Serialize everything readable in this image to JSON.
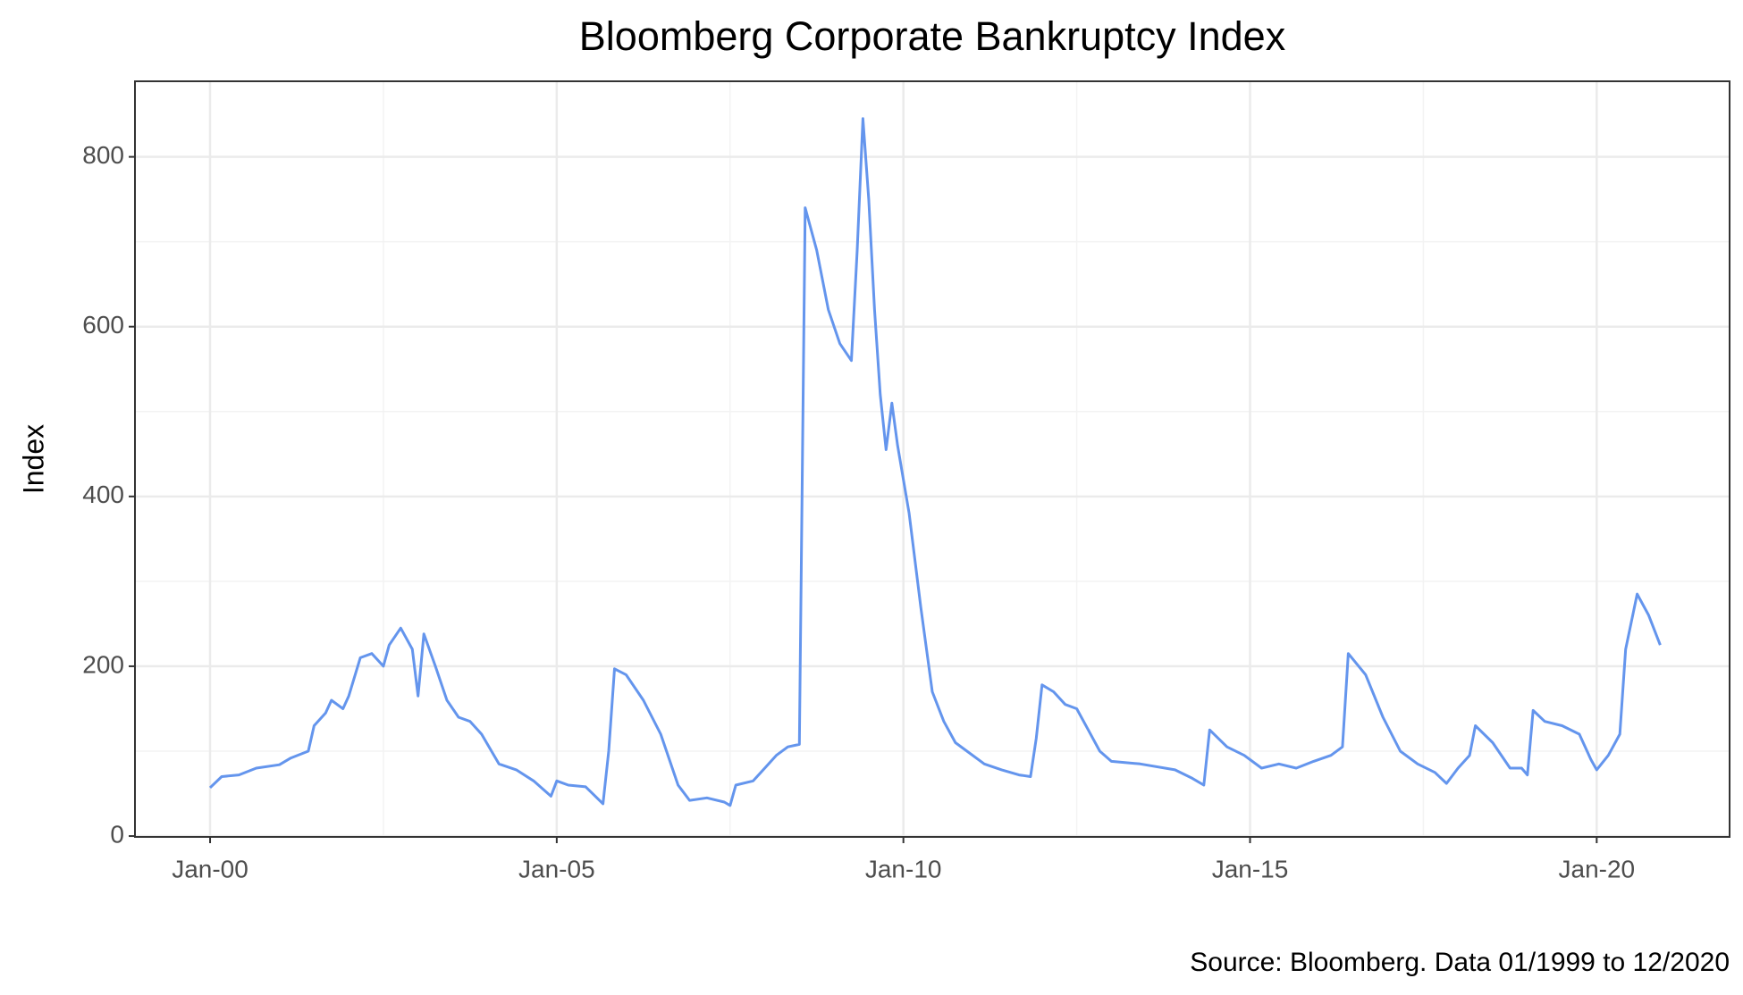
{
  "chart_data": {
    "type": "line",
    "title": "Bloomberg Corporate Bankruptcy Index",
    "y_label": "Index",
    "source": "Source: Bloomberg. Data 01/1999 to 12/2020",
    "color": "#6495ed",
    "grid": true,
    "xlim": [
      "1998-12",
      "2021-12"
    ],
    "xticks": [
      {
        "value": "2000-01",
        "label": "Jan-00"
      },
      {
        "value": "2005-01",
        "label": "Jan-05"
      },
      {
        "value": "2010-01",
        "label": "Jan-10"
      },
      {
        "value": "2015-01",
        "label": "Jan-15"
      },
      {
        "value": "2020-01",
        "label": "Jan-20"
      }
    ],
    "xminor": [
      "2002-07",
      "2007-07",
      "2012-07",
      "2017-07"
    ],
    "ylim": [
      -1,
      889
    ],
    "yticks": [
      0,
      200,
      400,
      600,
      800
    ],
    "yminor": [
      100,
      300,
      500,
      700
    ],
    "x": [
      "2000-01",
      "2000-03",
      "2000-06",
      "2000-09",
      "2001-01",
      "2001-03",
      "2001-06",
      "2001-07",
      "2001-09",
      "2001-10",
      "2001-12",
      "2002-01",
      "2002-03",
      "2002-05",
      "2002-07",
      "2002-08",
      "2002-10",
      "2002-12",
      "2003-01",
      "2003-02",
      "2003-04",
      "2003-06",
      "2003-08",
      "2003-10",
      "2003-12",
      "2004-03",
      "2004-06",
      "2004-09",
      "2004-12",
      "2005-01",
      "2005-03",
      "2005-06",
      "2005-09",
      "2005-10",
      "2005-11",
      "2006-01",
      "2006-04",
      "2006-07",
      "2006-10",
      "2006-12",
      "2007-03",
      "2007-06",
      "2007-07",
      "2007-08",
      "2007-11",
      "2008-01",
      "2008-03",
      "2008-05",
      "2008-07",
      "2008-08",
      "2008-10",
      "2008-12",
      "2009-02",
      "2009-04",
      "2009-05",
      "2009-06",
      "2009-07",
      "2009-08",
      "2009-09",
      "2009-10",
      "2009-11",
      "2009-12",
      "2010-02",
      "2010-04",
      "2010-06",
      "2010-08",
      "2010-10",
      "2010-12",
      "2011-03",
      "2011-06",
      "2011-09",
      "2011-11",
      "2011-12",
      "2012-01",
      "2012-03",
      "2012-05",
      "2012-07",
      "2012-09",
      "2012-11",
      "2013-01",
      "2013-06",
      "2013-12",
      "2014-03",
      "2014-05",
      "2014-06",
      "2014-09",
      "2014-12",
      "2015-03",
      "2015-06",
      "2015-09",
      "2015-12",
      "2016-03",
      "2016-05",
      "2016-06",
      "2016-09",
      "2016-12",
      "2017-03",
      "2017-06",
      "2017-09",
      "2017-11",
      "2018-01",
      "2018-03",
      "2018-04",
      "2018-07",
      "2018-10",
      "2018-12",
      "2019-01",
      "2019-02",
      "2019-04",
      "2019-07",
      "2019-10",
      "2019-12",
      "2020-01",
      "2020-03",
      "2020-05",
      "2020-06",
      "2020-08",
      "2020-10",
      "2020-12"
    ],
    "values": [
      57,
      70,
      72,
      80,
      84,
      92,
      100,
      130,
      145,
      160,
      150,
      165,
      210,
      215,
      200,
      225,
      245,
      220,
      165,
      238,
      200,
      160,
      140,
      135,
      120,
      85,
      78,
      65,
      47,
      65,
      60,
      58,
      38,
      100,
      197,
      190,
      160,
      120,
      60,
      42,
      45,
      40,
      36,
      60,
      65,
      80,
      95,
      105,
      108,
      740,
      690,
      620,
      580,
      560,
      690,
      845,
      750,
      620,
      520,
      455,
      510,
      460,
      380,
      270,
      170,
      135,
      110,
      100,
      85,
      78,
      72,
      70,
      115,
      178,
      170,
      155,
      150,
      125,
      100,
      88,
      85,
      78,
      68,
      60,
      125,
      105,
      95,
      80,
      85,
      80,
      88,
      95,
      105,
      215,
      190,
      140,
      100,
      85,
      75,
      62,
      80,
      95,
      130,
      110,
      80,
      80,
      72,
      148,
      135,
      130,
      120,
      90,
      78,
      95,
      120,
      220,
      285,
      260,
      225
    ]
  }
}
